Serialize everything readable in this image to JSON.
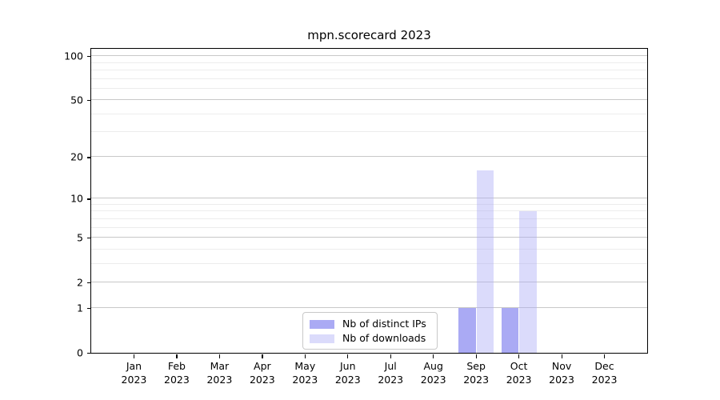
{
  "chart_data": {
    "type": "bar",
    "title": "mpn.scorecard 2023",
    "months": [
      "Jan",
      "Feb",
      "Mar",
      "Apr",
      "May",
      "Jun",
      "Jul",
      "Aug",
      "Sep",
      "Oct",
      "Nov",
      "Dec"
    ],
    "year": "2023",
    "series": [
      {
        "name": "Nb of distinct IPs",
        "color": "#aaaaf4",
        "values": [
          0,
          0,
          0,
          0,
          0,
          0,
          0,
          0,
          1,
          1,
          0,
          0
        ]
      },
      {
        "name": "Nb of downloads",
        "color": "#dcdcf8",
        "color_rgba": "rgba(170,170,245,0.42)",
        "values": [
          0,
          0,
          0,
          0,
          0,
          0,
          0,
          0,
          16,
          8,
          0,
          0
        ]
      }
    ],
    "yscale": "log1p",
    "yticks": [
      0,
      1,
      2,
      5,
      10,
      20,
      50,
      100
    ],
    "minor_gridlines": [
      3,
      4,
      6,
      7,
      8,
      9,
      30,
      40,
      60,
      70,
      80,
      90
    ],
    "ylim": [
      0,
      112
    ],
    "grid": "both",
    "legend_location": "lower center (inside plot)",
    "colors": {
      "axis": "#000000",
      "grid_major": "#c8c8c8",
      "grid_minor": "#ececec",
      "legend_border": "#c9c9c9"
    }
  }
}
